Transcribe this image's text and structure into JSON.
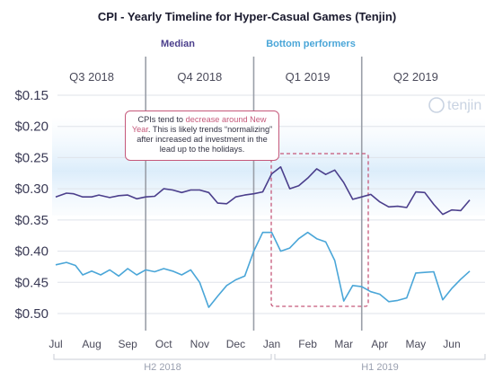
{
  "chart_data": {
    "type": "line",
    "title": "CPI - Yearly Timeline for Hyper-Casual Games (Tenjin)",
    "watermark": "tenjin",
    "legend": [
      {
        "name": "Median",
        "color": "#4b3f8c"
      },
      {
        "name": "Bottom performers",
        "color": "#4aa6d8"
      }
    ],
    "quarters": [
      "Q3 2018",
      "Q4 2018",
      "Q1 2019",
      "Q2 2019"
    ],
    "months": [
      "Jul",
      "Aug",
      "Sep",
      "Oct",
      "Nov",
      "Dec",
      "Jan",
      "Feb",
      "Mar",
      "Apr",
      "May",
      "Jun"
    ],
    "halves": [
      "H2 2018",
      "H1 2019"
    ],
    "y_axis": {
      "min": 0.15,
      "max": 0.5,
      "inverted": true,
      "ticks": [
        "$0.15",
        "$0.20",
        "$0.25",
        "$0.30",
        "$0.35",
        "$0.40",
        "$0.45",
        "$0.50"
      ],
      "tick_values": [
        0.15,
        0.2,
        0.25,
        0.3,
        0.35,
        0.4,
        0.45,
        0.5
      ]
    },
    "x_range": [
      0,
      11.6
    ],
    "series": [
      {
        "name": "Median",
        "color": "#4b3f8c",
        "x": [
          0,
          0.3,
          0.5,
          0.75,
          1.0,
          1.2,
          1.5,
          1.75,
          2.0,
          2.25,
          2.5,
          2.75,
          3.0,
          3.25,
          3.5,
          3.75,
          4.0,
          4.25,
          4.5,
          4.75,
          5.0,
          5.25,
          5.5,
          5.75,
          6.0,
          6.25,
          6.5,
          6.75,
          7.0,
          7.25,
          7.5,
          7.75,
          8.0,
          8.25,
          8.5,
          8.75,
          9.0,
          9.25,
          9.5,
          9.75,
          10.0,
          10.25,
          10.5,
          10.75,
          11.0,
          11.25,
          11.5
        ],
        "y": [
          0.313,
          0.307,
          0.308,
          0.313,
          0.313,
          0.31,
          0.314,
          0.311,
          0.31,
          0.316,
          0.313,
          0.312,
          0.3,
          0.302,
          0.306,
          0.302,
          0.302,
          0.306,
          0.323,
          0.324,
          0.313,
          0.31,
          0.308,
          0.305,
          0.276,
          0.265,
          0.3,
          0.295,
          0.283,
          0.268,
          0.277,
          0.27,
          0.29,
          0.317,
          0.313,
          0.309,
          0.321,
          0.329,
          0.328,
          0.33,
          0.305,
          0.306,
          0.325,
          0.341,
          0.334,
          0.335,
          0.318
        ]
      },
      {
        "name": "Bottom performers",
        "color": "#4aa6d8",
        "x": [
          0,
          0.3,
          0.55,
          0.75,
          1.0,
          1.25,
          1.5,
          1.75,
          2.0,
          2.25,
          2.5,
          2.75,
          3.0,
          3.25,
          3.5,
          3.75,
          4.0,
          4.25,
          4.5,
          4.75,
          5.0,
          5.25,
          5.5,
          5.75,
          6.0,
          6.25,
          6.5,
          6.75,
          7.0,
          7.25,
          7.5,
          7.75,
          8.0,
          8.25,
          8.5,
          8.75,
          9.0,
          9.25,
          9.5,
          9.75,
          10.0,
          10.25,
          10.5,
          10.75,
          11.0,
          11.25,
          11.5
        ],
        "y": [
          0.422,
          0.418,
          0.423,
          0.438,
          0.432,
          0.438,
          0.43,
          0.44,
          0.428,
          0.438,
          0.43,
          0.433,
          0.428,
          0.432,
          0.438,
          0.43,
          0.45,
          0.49,
          0.472,
          0.455,
          0.446,
          0.44,
          0.4,
          0.37,
          0.37,
          0.4,
          0.395,
          0.38,
          0.37,
          0.38,
          0.385,
          0.415,
          0.48,
          0.455,
          0.457,
          0.465,
          0.469,
          0.481,
          0.479,
          0.475,
          0.435,
          0.434,
          0.433,
          0.478,
          0.46,
          0.445,
          0.432
        ]
      }
    ],
    "annotation": {
      "lead": "CPIs tend to ",
      "highlight": "decrease around New Year",
      "rest": ". This is likely trends “normalizing” after increased ad investment in the lead up to the holidays."
    }
  }
}
